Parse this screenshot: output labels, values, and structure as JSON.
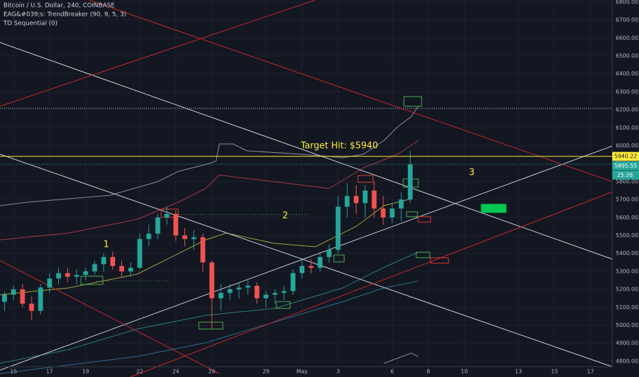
{
  "chart_data": {
    "type": "candlestick",
    "title": "Bitcoin / U.S. Dollar, 240, COINBASE",
    "indicators": [
      "EAG&#039;s: TrendBreaker (90, 9, 5, 3)",
      "TD Sequential (0)"
    ],
    "categories": [
      null,
      "15",
      null,
      null,
      null,
      "17",
      null,
      null,
      null,
      "19",
      null,
      null,
      null,
      null,
      null,
      "22",
      null,
      null,
      null,
      "24",
      null,
      null,
      null,
      "26",
      null,
      null,
      null,
      null,
      null,
      "29",
      null,
      null,
      null,
      "May",
      null,
      null,
      null,
      "3",
      null,
      null,
      null,
      null,
      null,
      "6",
      null,
      null,
      null,
      "8",
      null,
      null,
      null,
      "10",
      null,
      null,
      null,
      null,
      null,
      "13",
      null,
      null,
      null,
      "15",
      null,
      null,
      null,
      "17",
      null
    ],
    "open": [
      5130,
      5170,
      5200,
      5120,
      5080,
      5210,
      5260,
      5290,
      5270,
      5280,
      5300,
      5340,
      5380,
      5330,
      5300,
      5320,
      5480,
      5510,
      5600,
      5620,
      5500,
      5480,
      5490,
      5350,
      5150,
      5180,
      5200,
      5210,
      5220,
      5150,
      5170,
      5180,
      5190,
      5290,
      5330,
      5320,
      5380,
      5420,
      5660,
      5720,
      5680,
      5750,
      5650,
      5600,
      5650,
      5700,
      null,
      null,
      null,
      null,
      null,
      null,
      null,
      null,
      null,
      null,
      null,
      null,
      null,
      null,
      null,
      null,
      null,
      null,
      null,
      null,
      null
    ],
    "high": [
      5190,
      5220,
      5230,
      5160,
      5230,
      5290,
      5320,
      5320,
      5310,
      5320,
      5360,
      5400,
      5410,
      5360,
      5350,
      5510,
      5560,
      5620,
      5660,
      5640,
      5540,
      5530,
      5510,
      5360,
      5230,
      5230,
      5240,
      5250,
      5240,
      5190,
      5200,
      5220,
      5310,
      5360,
      5370,
      5400,
      5450,
      5720,
      5790,
      5780,
      5780,
      5800,
      5720,
      5680,
      5740,
      5970,
      null,
      null,
      null,
      null,
      null,
      null,
      null,
      null,
      null,
      null,
      null,
      null,
      null,
      null,
      null,
      null,
      null,
      null,
      null,
      null,
      null
    ],
    "low": [
      5080,
      5140,
      5100,
      5030,
      5060,
      5180,
      5230,
      5240,
      5230,
      5250,
      5280,
      5300,
      5310,
      5270,
      5270,
      5310,
      5440,
      5480,
      5560,
      5470,
      5440,
      5420,
      5300,
      4980,
      5080,
      5140,
      5150,
      5170,
      5120,
      5100,
      5120,
      5140,
      5170,
      5260,
      5290,
      5300,
      5350,
      5400,
      5600,
      5620,
      5600,
      5600,
      5560,
      5570,
      5580,
      5680,
      null,
      null,
      null,
      null,
      null,
      null,
      null,
      null,
      null,
      null,
      null,
      null,
      null,
      null,
      null,
      null,
      null,
      null,
      null,
      null,
      null
    ],
    "close": [
      5170,
      5200,
      5120,
      5080,
      5210,
      5260,
      5290,
      5270,
      5280,
      5300,
      5340,
      5380,
      5330,
      5300,
      5320,
      5480,
      5510,
      5600,
      5620,
      5500,
      5480,
      5490,
      5350,
      5150,
      5180,
      5200,
      5210,
      5220,
      5150,
      5170,
      5180,
      5190,
      5290,
      5330,
      5320,
      5380,
      5420,
      5660,
      5720,
      5680,
      5750,
      5650,
      5600,
      5650,
      5700,
      5895.55,
      null,
      null,
      null,
      null,
      null,
      null,
      null,
      null,
      null,
      null,
      null,
      null,
      null,
      null,
      null,
      null,
      null,
      null,
      null,
      null,
      null
    ],
    "up_color": "#26a69a",
    "down_color": "#ef5350",
    "ylim": [
      4769,
      6811
    ],
    "yticks": [
      {
        "value": 4800,
        "label": "4800.00"
      },
      {
        "value": 4900,
        "label": "4900.00"
      },
      {
        "value": 5000,
        "label": "5000.00"
      },
      {
        "value": 5100,
        "label": "5100.00"
      },
      {
        "value": 5200,
        "label": "5200.00"
      },
      {
        "value": 5300,
        "label": "5300.00"
      },
      {
        "value": 5400,
        "label": "5400.00"
      },
      {
        "value": 5500,
        "label": "5500.00"
      },
      {
        "value": 5600,
        "label": "5600.00"
      },
      {
        "value": 5700,
        "label": "5700.00"
      },
      {
        "value": 5800,
        "label": "5800.00"
      },
      {
        "value": 5900,
        "label": "5900.00"
      },
      {
        "value": 6000,
        "label": "6000.00"
      },
      {
        "value": 6100,
        "label": "6100.00"
      },
      {
        "value": 6200,
        "label": "6200.00"
      },
      {
        "value": 6300,
        "label": "6300.00"
      },
      {
        "value": 6400,
        "label": "6400.00"
      },
      {
        "value": 6500,
        "label": "6500.00"
      },
      {
        "value": 6600,
        "label": "6600.00"
      },
      {
        "value": 6700,
        "label": "6700.00"
      },
      {
        "value": 6800,
        "label": "6800.00"
      }
    ],
    "grid": true,
    "price_lines": [
      {
        "value": 5940.22,
        "color": "#ffeb3b"
      },
      {
        "value": 5895.55,
        "color": "#26a69a"
      }
    ],
    "level_lines": [
      6208
    ],
    "countdown": "25:26",
    "annotations": [
      "Target Hit: $5940",
      "1",
      "2",
      "3"
    ]
  }
}
